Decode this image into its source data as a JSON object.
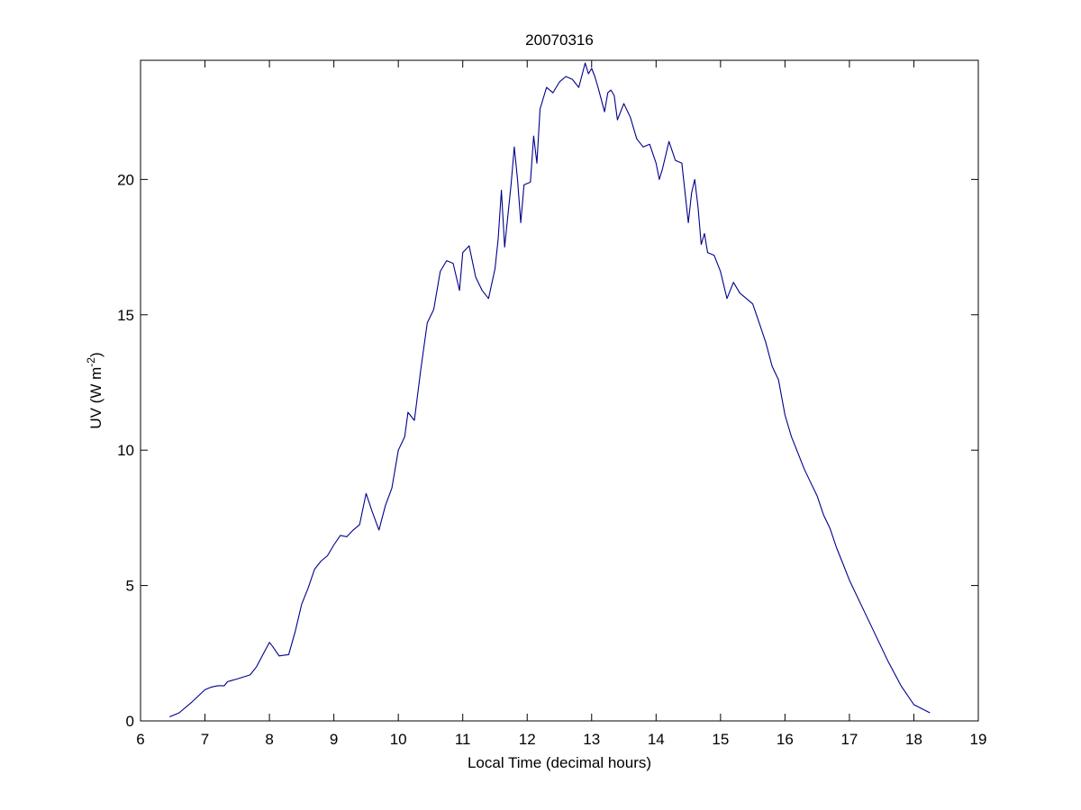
{
  "chart_data": {
    "type": "line",
    "title": "20070316",
    "xlabel": "Local Time (decimal hours)",
    "ylabel": {
      "main": "UV (W m",
      "superscript": "-2",
      "close": ")"
    },
    "xlim": [
      6,
      19
    ],
    "ylim": [
      0,
      24.4
    ],
    "xticks": [
      6,
      7,
      8,
      9,
      10,
      11,
      12,
      13,
      14,
      15,
      16,
      17,
      18,
      19
    ],
    "yticks": [
      0,
      5,
      10,
      15,
      20
    ],
    "grid": false,
    "line_color": "#00008b",
    "series": [
      {
        "x": [
          6.45,
          6.6,
          6.8,
          7.0,
          7.1,
          7.2,
          7.3,
          7.35,
          7.5,
          7.7,
          7.8,
          7.9,
          8.0,
          8.05,
          8.15,
          8.3,
          8.4,
          8.5,
          8.6,
          8.7,
          8.8,
          8.9,
          9.0,
          9.1,
          9.2,
          9.3,
          9.4,
          9.5,
          9.6,
          9.7,
          9.8,
          9.9,
          10.0,
          10.1,
          10.15,
          10.25,
          10.35,
          10.45,
          10.55,
          10.65,
          10.75,
          10.85,
          10.95,
          11.0,
          11.1,
          11.2,
          11.3,
          11.4,
          11.5,
          11.55,
          11.6,
          11.65,
          11.75,
          11.8,
          11.85,
          11.9,
          11.95,
          12.05,
          12.1,
          12.15,
          12.2,
          12.3,
          12.4,
          12.5,
          12.6,
          12.7,
          12.8,
          12.9,
          12.95,
          13.0,
          13.05,
          13.1,
          13.2,
          13.25,
          13.3,
          13.35,
          13.4,
          13.5,
          13.6,
          13.7,
          13.8,
          13.9,
          14.0,
          14.05,
          14.1,
          14.2,
          14.3,
          14.4,
          14.5,
          14.55,
          14.6,
          14.65,
          14.7,
          14.75,
          14.8,
          14.9,
          15.0,
          15.1,
          15.2,
          15.3,
          15.4,
          15.5,
          15.6,
          15.7,
          15.8,
          15.9,
          16.0,
          16.1,
          16.2,
          16.3,
          16.4,
          16.5,
          16.6,
          16.7,
          16.8,
          16.9,
          17.0,
          17.2,
          17.4,
          17.6,
          17.8,
          18.0,
          18.25
        ],
        "y": [
          0.15,
          0.3,
          0.7,
          1.15,
          1.25,
          1.3,
          1.3,
          1.45,
          1.55,
          1.7,
          2.0,
          2.45,
          2.9,
          2.75,
          2.4,
          2.45,
          3.3,
          4.3,
          4.9,
          5.6,
          5.9,
          6.1,
          6.5,
          6.85,
          6.8,
          7.05,
          7.25,
          8.4,
          7.7,
          7.05,
          7.95,
          8.6,
          10.0,
          10.5,
          11.4,
          11.1,
          13.0,
          14.7,
          15.2,
          16.6,
          17.0,
          16.9,
          15.9,
          17.3,
          17.55,
          16.4,
          15.9,
          15.6,
          16.7,
          17.8,
          19.6,
          17.5,
          19.8,
          21.2,
          20.0,
          18.4,
          19.8,
          19.9,
          21.6,
          20.6,
          22.6,
          23.4,
          23.2,
          23.6,
          23.8,
          23.7,
          23.4,
          24.3,
          23.9,
          24.1,
          23.8,
          23.4,
          22.5,
          23.2,
          23.3,
          23.1,
          22.2,
          22.8,
          22.3,
          21.5,
          21.2,
          21.3,
          20.6,
          20.0,
          20.4,
          21.4,
          20.7,
          20.6,
          18.4,
          19.5,
          20.0,
          19.0,
          17.6,
          18.0,
          17.3,
          17.2,
          16.6,
          15.6,
          16.2,
          15.8,
          15.6,
          15.4,
          14.7,
          14.0,
          13.1,
          12.6,
          11.3,
          10.5,
          9.9,
          9.3,
          8.8,
          8.3,
          7.6,
          7.1,
          6.4,
          5.8,
          5.2,
          4.2,
          3.2,
          2.2,
          1.3,
          0.6,
          0.3
        ]
      }
    ]
  }
}
